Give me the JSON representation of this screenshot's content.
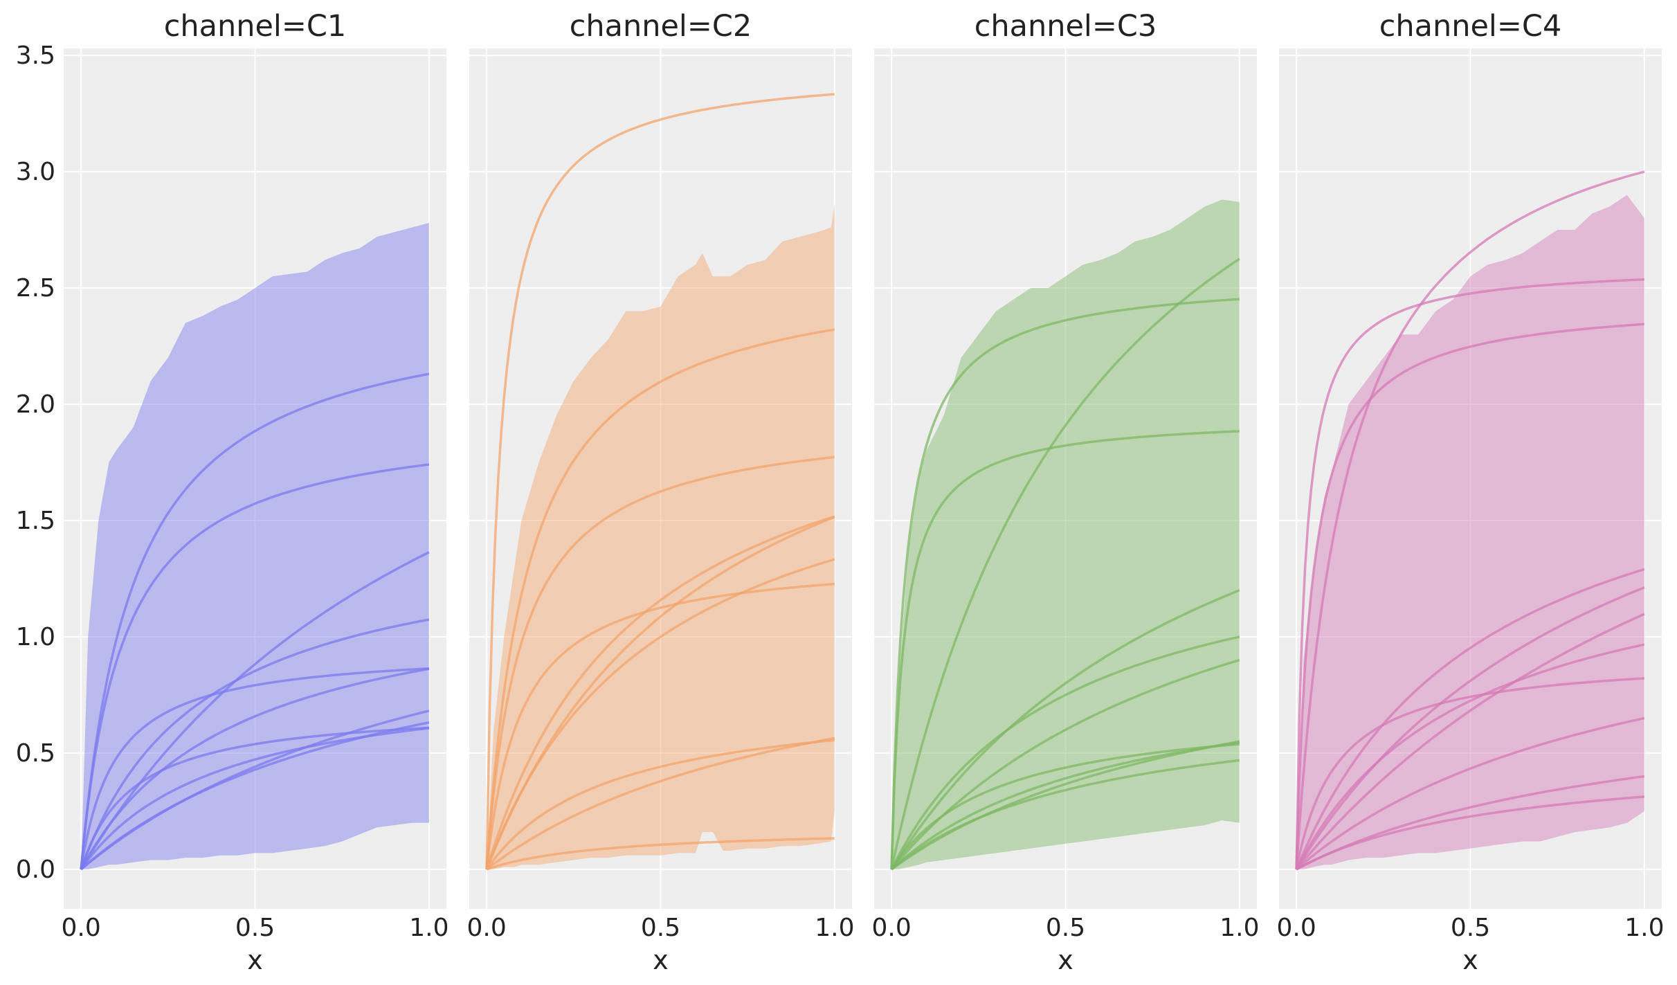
{
  "chart_data": {
    "type": "line",
    "facet_key": "channel",
    "panels": [
      {
        "title": "channel=C1",
        "color": "#7b7bef",
        "band": {
          "x": [
            0,
            0.02,
            0.05,
            0.08,
            0.1,
            0.15,
            0.2,
            0.25,
            0.3,
            0.35,
            0.4,
            0.45,
            0.5,
            0.55,
            0.6,
            0.65,
            0.7,
            0.75,
            0.8,
            0.85,
            0.9,
            0.95,
            1.0
          ],
          "upper": [
            0,
            1.0,
            1.5,
            1.75,
            1.8,
            1.9,
            2.1,
            2.2,
            2.35,
            2.38,
            2.42,
            2.45,
            2.5,
            2.55,
            2.56,
            2.57,
            2.62,
            2.65,
            2.67,
            2.72,
            2.74,
            2.76,
            2.78
          ],
          "lower": [
            0,
            0.0,
            0.01,
            0.02,
            0.02,
            0.03,
            0.04,
            0.04,
            0.05,
            0.05,
            0.06,
            0.06,
            0.07,
            0.07,
            0.08,
            0.09,
            0.1,
            0.12,
            0.15,
            0.18,
            0.19,
            0.2,
            0.2
          ]
        },
        "curves": [
          {
            "alpha": 3.0,
            "k": 1.2
          },
          {
            "alpha": 2.45,
            "k": 0.15
          },
          {
            "alpha": 1.95,
            "k": 0.12
          },
          {
            "alpha": 1.45,
            "k": 0.35
          },
          {
            "alpha": 0.95,
            "k": 0.1
          },
          {
            "alpha": 1.25,
            "k": 0.45
          },
          {
            "alpha": 1.5,
            "k": 1.2
          },
          {
            "alpha": 1.2,
            "k": 0.9
          },
          {
            "alpha": 0.7,
            "k": 0.15
          },
          {
            "alpha": 0.85,
            "k": 0.4
          }
        ]
      },
      {
        "title": "channel=C2",
        "color": "#f3a46b",
        "band": {
          "x": [
            0,
            0.02,
            0.05,
            0.08,
            0.1,
            0.15,
            0.2,
            0.25,
            0.3,
            0.35,
            0.4,
            0.45,
            0.5,
            0.55,
            0.6,
            0.62,
            0.65,
            0.68,
            0.7,
            0.75,
            0.8,
            0.85,
            0.9,
            0.95,
            0.99,
            1.0
          ],
          "upper": [
            0,
            0.6,
            1.0,
            1.3,
            1.5,
            1.75,
            1.95,
            2.1,
            2.2,
            2.28,
            2.4,
            2.4,
            2.42,
            2.55,
            2.6,
            2.65,
            2.55,
            2.55,
            2.55,
            2.6,
            2.62,
            2.7,
            2.72,
            2.74,
            2.76,
            2.86
          ],
          "lower": [
            0,
            0.0,
            0.01,
            0.01,
            0.02,
            0.02,
            0.03,
            0.04,
            0.05,
            0.05,
            0.06,
            0.06,
            0.06,
            0.07,
            0.07,
            0.16,
            0.16,
            0.08,
            0.08,
            0.09,
            0.09,
            0.1,
            0.1,
            0.11,
            0.12,
            0.25
          ]
        },
        "curves": [
          {
            "alpha": 3.45,
            "k": 0.035
          },
          {
            "alpha": 2.6,
            "k": 0.12
          },
          {
            "alpha": 1.95,
            "k": 0.1
          },
          {
            "alpha": 2.2,
            "k": 0.45
          },
          {
            "alpha": 2.5,
            "k": 0.65
          },
          {
            "alpha": 2.0,
            "k": 0.5
          },
          {
            "alpha": 1.35,
            "k": 0.1
          },
          {
            "alpha": 1.1,
            "k": 0.95
          },
          {
            "alpha": 0.75,
            "k": 0.35
          },
          {
            "alpha": 0.18,
            "k": 0.35
          }
        ]
      },
      {
        "title": "channel=C3",
        "color": "#7fb866",
        "band": {
          "x": [
            0,
            0.02,
            0.05,
            0.08,
            0.1,
            0.15,
            0.2,
            0.25,
            0.3,
            0.35,
            0.4,
            0.45,
            0.5,
            0.55,
            0.6,
            0.65,
            0.7,
            0.75,
            0.8,
            0.85,
            0.9,
            0.95,
            1.0
          ],
          "upper": [
            0,
            0.8,
            1.4,
            1.7,
            1.8,
            1.95,
            2.2,
            2.3,
            2.4,
            2.45,
            2.5,
            2.5,
            2.55,
            2.6,
            2.62,
            2.65,
            2.7,
            2.72,
            2.75,
            2.8,
            2.85,
            2.88,
            2.87
          ],
          "lower": [
            0,
            0.0,
            0.01,
            0.02,
            0.03,
            0.04,
            0.05,
            0.06,
            0.07,
            0.08,
            0.09,
            0.1,
            0.11,
            0.12,
            0.13,
            0.14,
            0.15,
            0.16,
            0.17,
            0.18,
            0.19,
            0.21,
            0.2
          ]
        },
        "curves": [
          {
            "alpha": 2.55,
            "k": 0.04
          },
          {
            "alpha": 1.95,
            "k": 0.035
          },
          {
            "alpha": 4.2,
            "k": 0.6
          },
          {
            "alpha": 2.4,
            "k": 1.0
          },
          {
            "alpha": 1.5,
            "k": 0.5
          },
          {
            "alpha": 1.8,
            "k": 1.0
          },
          {
            "alpha": 1.1,
            "k": 1.0
          },
          {
            "alpha": 0.7,
            "k": 0.3
          },
          {
            "alpha": 0.9,
            "k": 0.65
          },
          {
            "alpha": 0.75,
            "k": 0.6
          }
        ]
      },
      {
        "title": "channel=C4",
        "color": "#d57ab6",
        "band": {
          "x": [
            0,
            0.02,
            0.05,
            0.08,
            0.1,
            0.15,
            0.2,
            0.25,
            0.3,
            0.35,
            0.4,
            0.45,
            0.5,
            0.55,
            0.6,
            0.65,
            0.7,
            0.75,
            0.8,
            0.85,
            0.9,
            0.95,
            1.0
          ],
          "upper": [
            0,
            0.9,
            1.3,
            1.6,
            1.7,
            2.0,
            2.1,
            2.2,
            2.3,
            2.3,
            2.4,
            2.45,
            2.55,
            2.6,
            2.62,
            2.65,
            2.7,
            2.75,
            2.75,
            2.82,
            2.85,
            2.9,
            2.8
          ],
          "lower": [
            0,
            0.0,
            0.01,
            0.02,
            0.02,
            0.04,
            0.05,
            0.05,
            0.06,
            0.07,
            0.07,
            0.08,
            0.09,
            0.1,
            0.11,
            0.12,
            0.12,
            0.14,
            0.16,
            0.17,
            0.18,
            0.2,
            0.25
          ]
        },
        "curves": [
          {
            "alpha": 3.45,
            "k": 0.15
          },
          {
            "alpha": 2.45,
            "k": 0.045
          },
          {
            "alpha": 2.6,
            "k": 0.025
          },
          {
            "alpha": 2.0,
            "k": 0.55
          },
          {
            "alpha": 2.4,
            "k": 0.98
          },
          {
            "alpha": 2.8,
            "k": 1.55
          },
          {
            "alpha": 1.45,
            "k": 0.5
          },
          {
            "alpha": 0.92,
            "k": 0.12
          },
          {
            "alpha": 1.3,
            "k": 1.0
          },
          {
            "alpha": 0.8,
            "k": 1.0
          },
          {
            "alpha": 0.5,
            "k": 0.6
          }
        ]
      }
    ],
    "xlabel": "x",
    "ylabel": "",
    "xlim": [
      -0.05,
      1.05
    ],
    "ylim": [
      -0.17,
      3.53
    ],
    "xticks": [
      0.0,
      0.5,
      1.0
    ],
    "xtick_labels": [
      "0.0",
      "0.5",
      "1.0"
    ],
    "yticks": [
      0.0,
      0.5,
      1.0,
      1.5,
      2.0,
      2.5,
      3.0,
      3.5
    ],
    "ytick_labels": [
      "0.0",
      "0.5",
      "1.0",
      "1.5",
      "2.0",
      "2.5",
      "3.0",
      "3.5"
    ],
    "grid": true,
    "sharey": true
  }
}
